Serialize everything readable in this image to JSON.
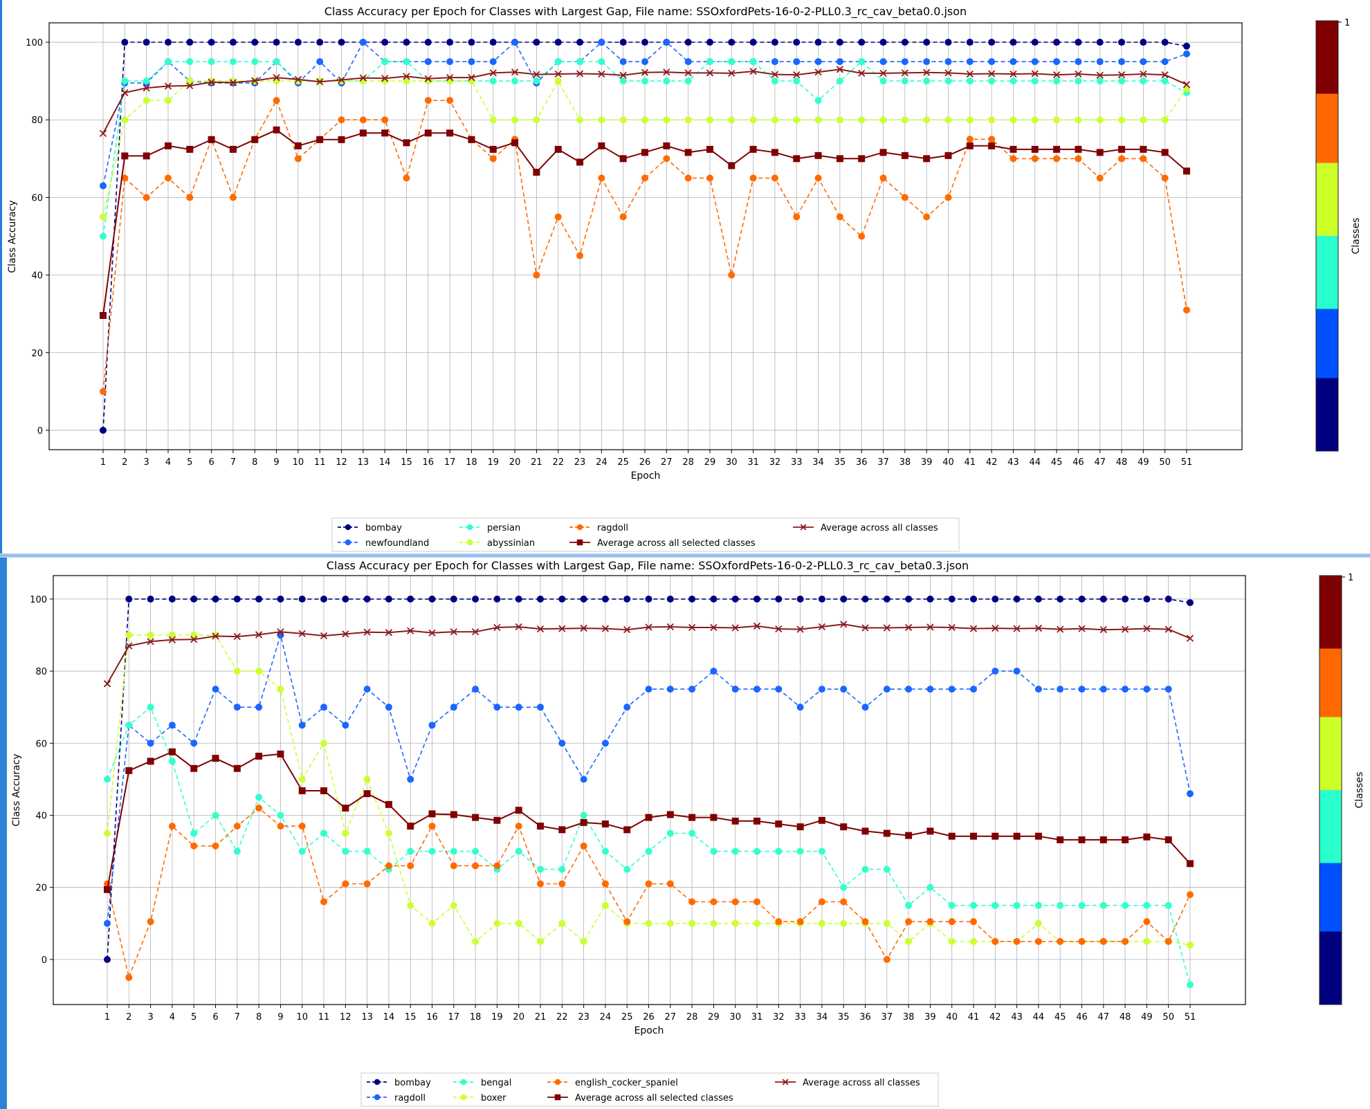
{
  "colors": {
    "bombay": "#00007f",
    "newfoundland": "#1a66ff",
    "ragdoll_blue": "#1a66ff",
    "persian": "#33ffcc",
    "bengal": "#33ffcc",
    "abyssinian": "#ccff33",
    "boxer": "#ccff33",
    "ragdoll_orange": "#ff6a00",
    "english_cocker_spaniel": "#ff6a00",
    "avg_selected": "#7f0000",
    "avg_all": "#8b1a1a",
    "colorbar": [
      "#00007f",
      "#0050ff",
      "#29ffcd",
      "#cdff29",
      "#ff6800",
      "#7f0000"
    ]
  },
  "chart_data": [
    {
      "type": "line",
      "title": "Class Accuracy per Epoch for Classes with Largest Gap, File name: SSOxfordPets-16-0-2-PLL0.3_rc_cav_beta0.0.json",
      "xlabel": "Epoch",
      "ylabel": "Class Accuracy",
      "ylim": [
        -5,
        105
      ],
      "yticks": [
        0,
        20,
        40,
        60,
        80,
        100
      ],
      "grid": true,
      "legend_position": "below",
      "x": [
        1,
        2,
        3,
        4,
        5,
        6,
        7,
        8,
        9,
        10,
        11,
        12,
        13,
        14,
        15,
        16,
        17,
        18,
        19,
        20,
        21,
        22,
        23,
        24,
        25,
        26,
        27,
        28,
        29,
        30,
        31,
        32,
        33,
        34,
        35,
        36,
        37,
        38,
        39,
        40,
        41,
        42,
        43,
        44,
        45,
        46,
        47,
        48,
        49,
        50,
        51
      ],
      "series": [
        {
          "name": "bombay",
          "key": "bombay",
          "marker": "o",
          "dashed": true,
          "values": [
            0,
            100,
            100,
            100,
            100,
            100,
            100,
            100,
            100,
            100,
            100,
            100,
            100,
            100,
            100,
            100,
            100,
            100,
            100,
            100,
            100,
            100,
            100,
            100,
            100,
            100,
            100,
            100,
            100,
            100,
            100,
            100,
            100,
            100,
            100,
            100,
            100,
            100,
            100,
            100,
            100,
            100,
            100,
            100,
            100,
            100,
            100,
            100,
            100,
            100,
            99
          ]
        },
        {
          "name": "newfoundland",
          "key": "newfoundland",
          "marker": "o",
          "dashed": true,
          "values": [
            63,
            89.5,
            89.5,
            95,
            90,
            89.5,
            89.5,
            89.5,
            95,
            89.5,
            95,
            89.5,
            100,
            95,
            95,
            95,
            95,
            95,
            95,
            100,
            89.5,
            95,
            95,
            100,
            95,
            95,
            100,
            95,
            95,
            95,
            95,
            95,
            95,
            95,
            95,
            95,
            95,
            95,
            95,
            95,
            95,
            95,
            95,
            95,
            95,
            95,
            95,
            95,
            95,
            95,
            97
          ]
        },
        {
          "name": "persian",
          "key": "persian",
          "marker": "o",
          "dashed": true,
          "values": [
            50,
            90,
            90,
            95,
            95,
            95,
            95,
            95,
            95,
            90,
            90,
            90,
            90,
            95,
            95,
            90,
            90,
            90,
            90,
            90,
            90,
            95,
            95,
            95,
            90,
            90,
            90,
            90,
            95,
            95,
            95,
            90,
            90,
            85,
            90,
            95,
            90,
            90,
            90,
            90,
            90,
            90,
            90,
            90,
            90,
            90,
            90,
            90,
            90,
            90,
            87
          ]
        },
        {
          "name": "ragdoll",
          "key": "ragdoll_orange",
          "marker": "o",
          "dashed": true,
          "values": [
            10,
            65,
            60,
            65,
            60,
            75,
            60,
            75,
            85,
            70,
            75,
            80,
            80,
            80,
            65,
            85,
            85,
            75,
            70,
            75,
            40,
            55,
            45,
            65,
            55,
            65,
            70,
            65,
            65,
            40,
            65,
            65,
            55,
            65,
            55,
            50,
            65,
            60,
            55,
            60,
            75,
            75,
            70,
            70,
            70,
            70,
            65,
            70,
            70,
            65,
            31
          ]
        },
        {
          "name": "abyssinian",
          "key": "abyssinian",
          "marker": "o",
          "dashed": true,
          "values": [
            55,
            80,
            85,
            85,
            90,
            90,
            90,
            90,
            90,
            90,
            90,
            90,
            90,
            90,
            90,
            90,
            90,
            90,
            80,
            80,
            80,
            90,
            80,
            80,
            80,
            80,
            80,
            80,
            80,
            80,
            80,
            80,
            80,
            80,
            80,
            80,
            80,
            80,
            80,
            80,
            80,
            80,
            80,
            80,
            80,
            80,
            80,
            80,
            80,
            80,
            88
          ]
        },
        {
          "name": "Average across all selected classes",
          "key": "avg_selected",
          "marker": "s",
          "dashed": false,
          "values": [
            29.6,
            70.7,
            70.7,
            73.3,
            72.4,
            74.9,
            72.4,
            74.9,
            77.4,
            73.3,
            74.9,
            74.9,
            76.6,
            76.6,
            74.1,
            76.6,
            76.6,
            74.9,
            72.4,
            74.1,
            66.5,
            72.4,
            69.1,
            73.3,
            70,
            71.6,
            73.3,
            71.6,
            72.4,
            68.2,
            72.4,
            71.6,
            70,
            70.8,
            70,
            70,
            71.6,
            70.8,
            70,
            70.8,
            73.3,
            73.3,
            72.4,
            72.4,
            72.4,
            72.4,
            71.6,
            72.4,
            72.4,
            71.6,
            66.8
          ]
        },
        {
          "name": "Average across all classes",
          "key": "avg_all",
          "marker": "x",
          "dashed": false,
          "values": [
            76.5,
            87,
            88.2,
            88.7,
            88.8,
            89.7,
            89.6,
            90.1,
            90.9,
            90.4,
            89.8,
            90.3,
            90.8,
            90.7,
            91.2,
            90.6,
            90.9,
            90.9,
            92.1,
            92.3,
            91.7,
            91.8,
            91.9,
            91.8,
            91.5,
            92.2,
            92.3,
            92.1,
            92.1,
            92,
            92.5,
            91.7,
            91.6,
            92.3,
            93,
            92,
            92,
            92.1,
            92.2,
            92.1,
            91.8,
            91.9,
            91.8,
            91.9,
            91.6,
            91.8,
            91.5,
            91.6,
            91.8,
            91.6,
            89.1
          ]
        }
      ],
      "legend_entries": [
        "bombay",
        "newfoundland",
        "persian",
        "abyssinian",
        "ragdoll",
        "Average across all selected classes",
        "Average across all classes"
      ],
      "colorbar": {
        "label": "Classes",
        "tick": "1"
      }
    },
    {
      "type": "line",
      "title": "Class Accuracy per Epoch for Classes with Largest Gap, File name: SSOxfordPets-16-0-2-PLL0.3_rc_cav_beta0.3.json",
      "xlabel": "Epoch",
      "ylabel": "Class Accuracy",
      "ylim": [
        -12.5,
        106.5
      ],
      "yticks": [
        0,
        20,
        40,
        60,
        80,
        100
      ],
      "grid": true,
      "legend_position": "below",
      "x": [
        1,
        2,
        3,
        4,
        5,
        6,
        7,
        8,
        9,
        10,
        11,
        12,
        13,
        14,
        15,
        16,
        17,
        18,
        19,
        20,
        21,
        22,
        23,
        24,
        25,
        26,
        27,
        28,
        29,
        30,
        31,
        32,
        33,
        34,
        35,
        36,
        37,
        38,
        39,
        40,
        41,
        42,
        43,
        44,
        45,
        46,
        47,
        48,
        49,
        50,
        51
      ],
      "series": [
        {
          "name": "bombay",
          "key": "bombay",
          "marker": "o",
          "dashed": true,
          "values": [
            0,
            100,
            100,
            100,
            100,
            100,
            100,
            100,
            100,
            100,
            100,
            100,
            100,
            100,
            100,
            100,
            100,
            100,
            100,
            100,
            100,
            100,
            100,
            100,
            100,
            100,
            100,
            100,
            100,
            100,
            100,
            100,
            100,
            100,
            100,
            100,
            100,
            100,
            100,
            100,
            100,
            100,
            100,
            100,
            100,
            100,
            100,
            100,
            100,
            100,
            99
          ]
        },
        {
          "name": "ragdoll",
          "key": "ragdoll_blue",
          "marker": "o",
          "dashed": true,
          "values": [
            10,
            65,
            60,
            65,
            60,
            75,
            70,
            70,
            90,
            65,
            70,
            65,
            75,
            70,
            50,
            65,
            70,
            75,
            70,
            70,
            70,
            60,
            50,
            60,
            70,
            75,
            75,
            75,
            80,
            75,
            75,
            75,
            70,
            75,
            75,
            70,
            75,
            75,
            75,
            75,
            75,
            80,
            80,
            75,
            75,
            75,
            75,
            75,
            75,
            75,
            46
          ]
        },
        {
          "name": "bengal",
          "key": "bengal",
          "marker": "o",
          "dashed": true,
          "values": [
            50,
            65,
            70,
            55,
            35,
            40,
            30,
            45,
            40,
            30,
            35,
            30,
            30,
            25,
            30,
            30,
            30,
            30,
            25,
            30,
            25,
            25,
            40,
            30,
            25,
            30,
            35,
            35,
            30,
            30,
            30,
            30,
            30,
            30,
            20,
            25,
            25,
            15,
            20,
            15,
            15,
            15,
            15,
            15,
            15,
            15,
            15,
            15,
            15,
            15,
            -7
          ]
        },
        {
          "name": "boxer",
          "key": "boxer",
          "marker": "o",
          "dashed": true,
          "values": [
            35,
            90,
            90,
            90,
            90,
            90,
            80,
            80,
            75,
            50,
            60,
            35,
            50,
            35,
            15,
            10,
            15,
            5,
            10,
            10,
            5,
            10,
            5,
            15,
            10,
            10,
            10,
            10,
            10,
            10,
            10,
            10,
            10,
            10,
            10,
            10,
            10,
            5,
            10,
            5,
            5,
            5,
            5,
            10,
            5,
            5,
            5,
            5,
            5,
            5,
            4
          ]
        },
        {
          "name": "english_cocker_spaniel",
          "key": "english_cocker_spaniel",
          "marker": "o",
          "dashed": true,
          "values": [
            21,
            -5,
            10.5,
            37,
            31.5,
            31.5,
            37,
            42,
            37,
            37,
            16,
            21,
            21,
            26,
            26,
            37,
            26,
            26,
            26,
            37,
            21,
            21,
            31.5,
            21,
            10.5,
            21,
            21,
            16,
            16,
            16,
            16,
            10.5,
            10.5,
            16,
            16,
            10.5,
            0,
            10.5,
            10.5,
            10.5,
            10.5,
            5,
            5,
            5,
            5,
            5,
            5,
            5,
            10.5,
            5,
            18
          ]
        },
        {
          "name": "Average across all selected classes",
          "key": "avg_selected",
          "marker": "s",
          "dashed": false,
          "values": [
            19.4,
            52.4,
            55,
            57.6,
            53,
            55.8,
            53,
            56.4,
            57,
            46.8,
            46.8,
            42,
            46,
            43,
            37,
            40.4,
            40.2,
            39.4,
            38.6,
            41.4,
            37,
            36,
            38,
            37.6,
            36,
            39.4,
            40.2,
            39.4,
            39.4,
            38.4,
            38.4,
            37.6,
            36.8,
            38.6,
            36.8,
            35.6,
            35,
            34.4,
            35.6,
            34.2,
            34.2,
            34.2,
            34.2,
            34.2,
            33.2,
            33.2,
            33.2,
            33.2,
            34,
            33.2,
            26.6
          ]
        },
        {
          "name": "Average across all classes",
          "key": "avg_all",
          "marker": "x",
          "dashed": false,
          "values": [
            76.5,
            87,
            88.2,
            88.7,
            88.8,
            89.7,
            89.6,
            90.1,
            90.9,
            90.4,
            89.8,
            90.3,
            90.8,
            90.7,
            91.2,
            90.6,
            90.9,
            90.9,
            92.1,
            92.3,
            91.7,
            91.8,
            91.9,
            91.8,
            91.5,
            92.2,
            92.3,
            92.1,
            92.1,
            92,
            92.5,
            91.7,
            91.6,
            92.3,
            93,
            92,
            92,
            92.1,
            92.2,
            92.1,
            91.8,
            91.9,
            91.8,
            91.9,
            91.6,
            91.8,
            91.5,
            91.6,
            91.8,
            91.6,
            89.1
          ]
        }
      ],
      "legend_entries": [
        "bombay",
        "ragdoll",
        "bengal",
        "boxer",
        "english_cocker_spaniel",
        "Average across all selected classes",
        "Average across all classes"
      ],
      "colorbar": {
        "label": "Classes",
        "tick": "1"
      }
    }
  ]
}
